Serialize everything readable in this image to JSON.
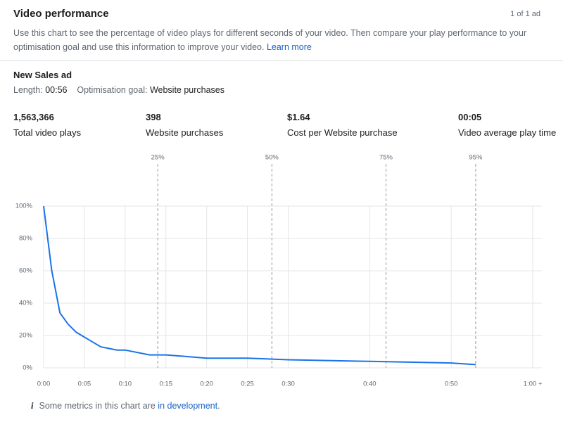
{
  "header": {
    "title": "Video performance",
    "count": "1 of 1 ad",
    "description": "Use this chart to see the percentage of video plays for different seconds of your video. Then compare your play performance to your optimisation goal and use this information to improve your video.",
    "learn_more": "Learn more"
  },
  "ad": {
    "name": "New Sales ad",
    "length_label": "Length:",
    "length": "00:56",
    "goal_label": "Optimisation goal:",
    "goal": "Website purchases"
  },
  "metrics": [
    {
      "value": "1,563,366",
      "label": "Total video plays"
    },
    {
      "value": "398",
      "label": "Website purchases"
    },
    {
      "value": "$1.64",
      "label": "Cost per Website purchase"
    },
    {
      "value": "00:05",
      "label": "Video average play time"
    }
  ],
  "chart_data": {
    "type": "line",
    "x": [
      0,
      1,
      2,
      3,
      4,
      7,
      9,
      10,
      13,
      15,
      20,
      25,
      30,
      40,
      50,
      53
    ],
    "values": [
      100,
      60,
      34,
      27,
      22,
      13,
      11,
      11,
      8,
      8,
      6,
      6,
      5,
      4,
      3,
      2
    ],
    "color": "#1a73e8",
    "xlim": [
      0,
      60
    ],
    "ylim": [
      0,
      100
    ],
    "xticks": [
      {
        "value": 0,
        "label": "0:00"
      },
      {
        "value": 5,
        "label": "0:05"
      },
      {
        "value": 10,
        "label": "0:10"
      },
      {
        "value": 15,
        "label": "0:15"
      },
      {
        "value": 20,
        "label": "0:20"
      },
      {
        "value": 25,
        "label": "0:25"
      },
      {
        "value": 30,
        "label": "0:30"
      },
      {
        "value": 40,
        "label": "0:40"
      },
      {
        "value": 50,
        "label": "0:50"
      },
      {
        "value": 60,
        "label": "1:00 +"
      }
    ],
    "yticks": [
      {
        "value": 0,
        "label": "0%"
      },
      {
        "value": 20,
        "label": "20%"
      },
      {
        "value": 40,
        "label": "40%"
      },
      {
        "value": 60,
        "label": "60%"
      },
      {
        "value": 80,
        "label": "80%"
      },
      {
        "value": 100,
        "label": "100%"
      }
    ],
    "markers": [
      {
        "value": 14,
        "label": "25%"
      },
      {
        "value": 28,
        "label": "50%"
      },
      {
        "value": 42,
        "label": "75%"
      },
      {
        "value": 53,
        "label": "95%"
      }
    ],
    "grid": true
  },
  "footer": {
    "icon": "i",
    "text": "Some metrics in this chart are ",
    "link": "in development",
    "end": "."
  }
}
